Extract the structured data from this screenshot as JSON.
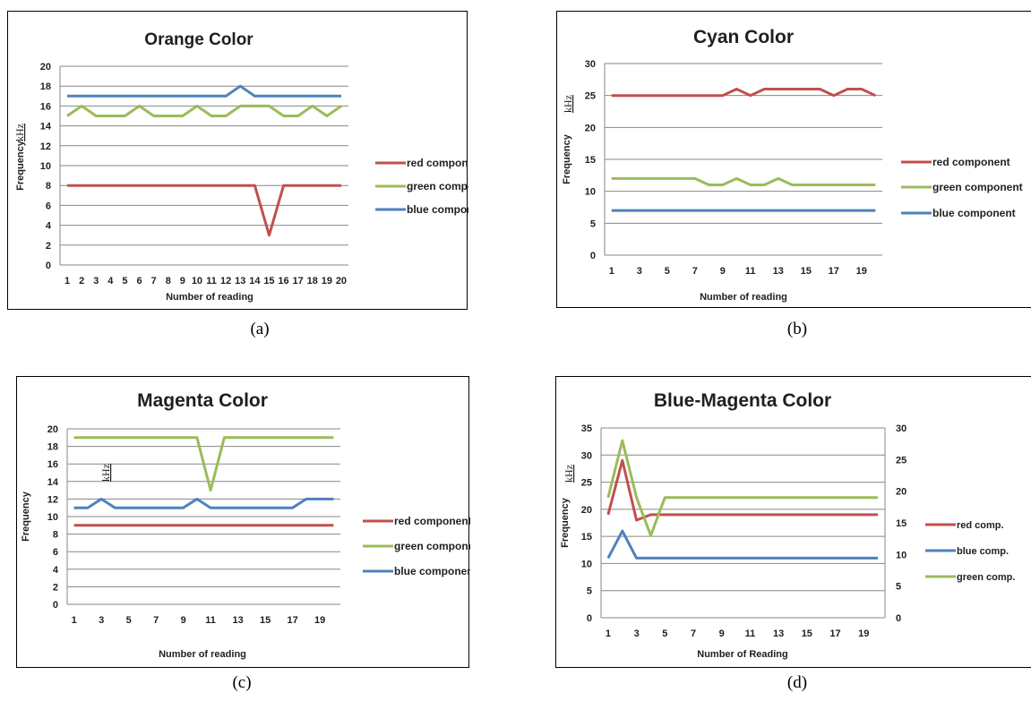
{
  "colors": {
    "red": "#c0504d",
    "green": "#9bbb59",
    "blue": "#4f81bd",
    "grid": "#878787",
    "unit": "#2f7a2f"
  },
  "chart_data": [
    {
      "type": "line",
      "title": "Orange Color",
      "caption": "(a)",
      "xlabel": "Number of reading",
      "ylabel": "Frequency",
      "yunit": "kHz",
      "ylim": [
        0,
        20
      ],
      "ytick_step": 2,
      "grid": true,
      "legend_position": "right",
      "x": [
        1,
        2,
        3,
        4,
        5,
        6,
        7,
        8,
        9,
        10,
        11,
        12,
        13,
        14,
        15,
        16,
        17,
        18,
        19,
        20
      ],
      "xtick_labels": [
        "1",
        "2",
        "3",
        "4",
        "5",
        "6",
        "7",
        "8",
        "9",
        "10",
        "11",
        "12",
        "13",
        "14",
        "15",
        "16",
        "17",
        "18",
        "19",
        "20"
      ],
      "series": [
        {
          "name": "red component",
          "color": "red",
          "values": [
            8,
            8,
            8,
            8,
            8,
            8,
            8,
            8,
            8,
            8,
            8,
            8,
            8,
            8,
            3,
            8,
            8,
            8,
            8,
            8
          ]
        },
        {
          "name": "green component",
          "color": "green",
          "values": [
            15,
            16,
            15,
            15,
            15,
            16,
            15,
            15,
            15,
            16,
            15,
            15,
            16,
            16,
            16,
            15,
            15,
            16,
            15,
            16
          ]
        },
        {
          "name": "blue component",
          "color": "blue",
          "values": [
            17,
            17,
            17,
            17,
            17,
            17,
            17,
            17,
            17,
            17,
            17,
            17,
            18,
            17,
            17,
            17,
            17,
            17,
            17,
            17
          ]
        }
      ]
    },
    {
      "type": "line",
      "title": "Cyan Color",
      "caption": "(b)",
      "xlabel": "Number of reading",
      "ylabel": "Frequency",
      "yunit": "kHz",
      "ylim": [
        0,
        30
      ],
      "ytick_step": 5,
      "grid": true,
      "legend_position": "right",
      "x": [
        1,
        2,
        3,
        4,
        5,
        6,
        7,
        8,
        9,
        10,
        11,
        12,
        13,
        14,
        15,
        16,
        17,
        18,
        19,
        20
      ],
      "xtick_labels": [
        "1",
        "3",
        "5",
        "7",
        "9",
        "11",
        "13",
        "15",
        "17",
        "19"
      ],
      "series": [
        {
          "name": "red component",
          "color": "red",
          "values": [
            25,
            25,
            25,
            25,
            25,
            25,
            25,
            25,
            25,
            26,
            25,
            26,
            26,
            26,
            26,
            26,
            25,
            26,
            26,
            25
          ]
        },
        {
          "name": "green component",
          "color": "green",
          "values": [
            12,
            12,
            12,
            12,
            12,
            12,
            12,
            11,
            11,
            12,
            11,
            11,
            12,
            11,
            11,
            11,
            11,
            11,
            11,
            11
          ]
        },
        {
          "name": "blue component",
          "color": "blue",
          "values": [
            7,
            7,
            7,
            7,
            7,
            7,
            7,
            7,
            7,
            7,
            7,
            7,
            7,
            7,
            7,
            7,
            7,
            7,
            7,
            7
          ]
        }
      ]
    },
    {
      "type": "line",
      "title": "Magenta Color",
      "caption": "(c)",
      "xlabel": "Number of reading",
      "ylabel": "Frequency",
      "yunit": "kHz",
      "ylim": [
        0,
        20
      ],
      "ytick_step": 2,
      "grid": true,
      "legend_position": "right",
      "x": [
        1,
        2,
        3,
        4,
        5,
        6,
        7,
        8,
        9,
        10,
        11,
        12,
        13,
        14,
        15,
        16,
        17,
        18,
        19,
        20
      ],
      "xtick_labels": [
        "1",
        "3",
        "5",
        "7",
        "9",
        "11",
        "13",
        "15",
        "17",
        "19"
      ],
      "series": [
        {
          "name": "red component",
          "color": "red",
          "values": [
            9,
            9,
            9,
            9,
            9,
            9,
            9,
            9,
            9,
            9,
            9,
            9,
            9,
            9,
            9,
            9,
            9,
            9,
            9,
            9
          ]
        },
        {
          "name": "green component",
          "color": "green",
          "values": [
            19,
            19,
            19,
            19,
            19,
            19,
            19,
            19,
            19,
            19,
            13,
            19,
            19,
            19,
            19,
            19,
            19,
            19,
            19,
            19
          ]
        },
        {
          "name": "blue component",
          "color": "blue",
          "values": [
            11,
            11,
            12,
            11,
            11,
            11,
            11,
            11,
            11,
            12,
            11,
            11,
            11,
            11,
            11,
            11,
            11,
            12,
            12,
            12
          ]
        }
      ]
    },
    {
      "type": "line",
      "title": "Blue-Magenta Color",
      "caption": "(d)",
      "xlabel": "Number of Reading",
      "ylabel": "Frequency",
      "yunit": "kHz",
      "ylim": [
        0,
        35
      ],
      "ytick_step": 5,
      "y2lim": [
        0,
        30
      ],
      "y2tick_step": 5,
      "grid": true,
      "legend_position": "right",
      "x": [
        1,
        2,
        3,
        4,
        5,
        6,
        7,
        8,
        9,
        10,
        11,
        12,
        13,
        14,
        15,
        16,
        17,
        18,
        19,
        20
      ],
      "xtick_labels": [
        "1",
        "3",
        "5",
        "7",
        "9",
        "11",
        "13",
        "15",
        "17",
        "19"
      ],
      "series": [
        {
          "name": "red comp.",
          "color": "red",
          "axis": "left",
          "values": [
            19,
            29,
            18,
            19,
            19,
            19,
            19,
            19,
            19,
            19,
            19,
            19,
            19,
            19,
            19,
            19,
            19,
            19,
            19,
            19
          ]
        },
        {
          "name": "blue comp.",
          "color": "blue",
          "axis": "left",
          "values": [
            11,
            16,
            11,
            11,
            11,
            11,
            11,
            11,
            11,
            11,
            11,
            11,
            11,
            11,
            11,
            11,
            11,
            11,
            11,
            11
          ]
        },
        {
          "name": "green comp.",
          "color": "green",
          "axis": "right",
          "values": [
            19,
            28,
            19,
            13,
            19,
            19,
            19,
            19,
            19,
            19,
            19,
            19,
            19,
            19,
            19,
            19,
            19,
            19,
            19,
            19
          ]
        }
      ]
    }
  ]
}
